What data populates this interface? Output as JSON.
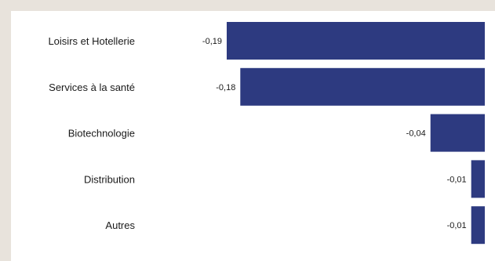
{
  "chart_data": {
    "type": "bar",
    "orientation": "horizontal",
    "categories": [
      "Loisirs et Hotellerie",
      "Services à la santé",
      "Biotechnologie",
      "Distribution",
      "Autres"
    ],
    "values": [
      -0.19,
      -0.18,
      -0.04,
      -0.01,
      -0.01
    ],
    "value_labels": [
      "-0,19",
      "-0,18",
      "-0,04",
      "-0,01",
      "-0,01"
    ],
    "xlim": [
      -0.19,
      0
    ],
    "grid": false,
    "legend": "none",
    "bar_color": "#2d3a80",
    "background_color": "#ffffff",
    "border_color": "#e8e3dc"
  }
}
